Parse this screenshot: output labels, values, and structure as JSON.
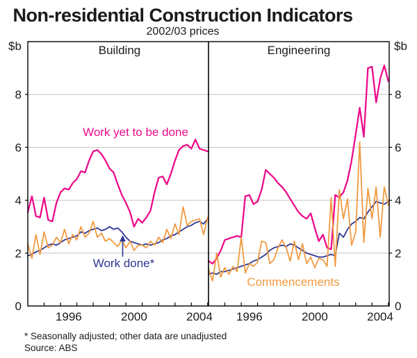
{
  "header": {
    "title": "Non-residential Construction Indicators",
    "subtitle": "2002/03 prices"
  },
  "axes": {
    "unit_label": "$b",
    "y_ticks": [
      0,
      2,
      4,
      6,
      8
    ],
    "y_max": 10,
    "x_tick_years": [
      1995,
      1996,
      1997,
      1998,
      1999,
      2000,
      2001,
      2002,
      2003,
      2004,
      2005
    ],
    "x_label_years": [
      1996,
      2000,
      2004
    ],
    "grid_on": true
  },
  "annotations": {
    "work_yet_label": "Work yet to be done",
    "work_done_label": "Work done*",
    "commencements_label": "Commencements"
  },
  "footnotes": {
    "note": "* Seasonally adjusted; other data are unadjusted",
    "source": "Source: ABS"
  },
  "colors": {
    "pink": "#EC0C8C",
    "blue": "#2D3493",
    "orange": "#F09A40",
    "grid": "#C9C9C9",
    "axis": "#000000",
    "text": "#1a1a1a"
  },
  "chart_data": [
    {
      "type": "line",
      "title": "Building",
      "x_start": 1994.0,
      "x_step": 0.25,
      "x_end": 2005.0,
      "ylim": [
        0,
        10
      ],
      "series": [
        {
          "name": "Work yet to be done",
          "color_key": "pink",
          "values": [
            3.55,
            4.15,
            3.4,
            3.35,
            4.1,
            3.25,
            3.2,
            3.9,
            4.3,
            4.45,
            4.4,
            4.65,
            4.8,
            5.1,
            5.05,
            5.5,
            5.85,
            5.9,
            5.75,
            5.5,
            5.2,
            5.05,
            4.6,
            4.2,
            3.9,
            3.55,
            3.0,
            3.3,
            3.15,
            3.35,
            3.6,
            4.3,
            4.85,
            4.9,
            4.6,
            5.0,
            5.5,
            5.9,
            6.05,
            6.1,
            5.95,
            6.3,
            5.95,
            5.9,
            5.85
          ]
        },
        {
          "name": "Work done*",
          "color_key": "blue",
          "values": [
            1.9,
            1.95,
            2.05,
            2.1,
            2.2,
            2.3,
            2.35,
            2.3,
            2.4,
            2.5,
            2.55,
            2.6,
            2.65,
            2.8,
            2.75,
            2.85,
            2.9,
            2.95,
            2.85,
            2.9,
            3.0,
            2.9,
            2.95,
            2.8,
            2.6,
            2.45,
            2.4,
            2.35,
            2.3,
            2.35,
            2.3,
            2.35,
            2.4,
            2.5,
            2.55,
            2.65,
            2.7,
            2.8,
            2.9,
            3.0,
            3.05,
            3.15,
            3.2,
            3.1,
            3.3
          ]
        },
        {
          "name": "Commencements",
          "color_key": "orange",
          "values": [
            2.35,
            1.8,
            2.7,
            1.95,
            2.8,
            2.2,
            2.3,
            2.6,
            2.4,
            2.9,
            2.35,
            2.7,
            2.5,
            3.0,
            2.6,
            2.75,
            3.2,
            2.6,
            2.75,
            2.45,
            2.55,
            2.4,
            2.25,
            2.5,
            2.2,
            2.45,
            2.1,
            2.3,
            2.3,
            2.2,
            2.45,
            2.3,
            2.6,
            2.4,
            2.9,
            2.55,
            3.1,
            2.7,
            3.75,
            3.05,
            3.2,
            3.25,
            3.3,
            2.7,
            3.35
          ]
        }
      ]
    },
    {
      "type": "line",
      "title": "Engineering",
      "x_start": 1994.0,
      "x_step": 0.25,
      "x_end": 2005.0,
      "ylim": [
        0,
        10
      ],
      "series": [
        {
          "name": "Work yet to be done",
          "color_key": "pink",
          "values": [
            1.7,
            1.6,
            1.8,
            2.1,
            2.5,
            2.55,
            2.6,
            2.65,
            2.6,
            4.15,
            4.2,
            3.85,
            3.95,
            4.4,
            5.15,
            5.0,
            4.85,
            4.65,
            4.5,
            4.3,
            4.05,
            3.8,
            3.55,
            3.4,
            3.3,
            3.5,
            2.95,
            2.45,
            2.7,
            2.2,
            2.15,
            4.2,
            4.1,
            4.3,
            4.75,
            5.5,
            6.5,
            7.5,
            6.4,
            9.0,
            9.05,
            7.7,
            8.6,
            9.1,
            8.5
          ]
        },
        {
          "name": "Work done*",
          "color_key": "blue",
          "values": [
            1.2,
            1.25,
            1.2,
            1.3,
            1.3,
            1.35,
            1.4,
            1.45,
            1.5,
            1.55,
            1.6,
            1.7,
            1.75,
            1.85,
            1.95,
            2.1,
            2.2,
            2.25,
            2.3,
            2.25,
            2.35,
            2.3,
            2.2,
            2.1,
            2.0,
            1.95,
            1.9,
            1.85,
            1.85,
            1.9,
            1.95,
            1.9,
            2.75,
            2.6,
            2.9,
            3.1,
            3.2,
            3.35,
            3.3,
            3.55,
            3.75,
            3.95,
            3.9,
            3.85,
            3.95
          ]
        },
        {
          "name": "Commencements",
          "color_key": "orange",
          "values": [
            1.4,
            0.95,
            2.0,
            1.1,
            1.45,
            1.2,
            1.5,
            1.3,
            2.6,
            1.25,
            1.6,
            1.5,
            1.65,
            2.45,
            2.4,
            1.6,
            1.75,
            2.2,
            2.5,
            2.2,
            1.7,
            2.45,
            1.75,
            2.35,
            1.6,
            1.85,
            1.45,
            1.8,
            1.75,
            1.5,
            4.1,
            1.5,
            4.4,
            3.3,
            4.05,
            2.3,
            2.8,
            6.2,
            2.4,
            4.45,
            3.3,
            4.5,
            2.6,
            4.5,
            3.8
          ]
        }
      ]
    }
  ]
}
